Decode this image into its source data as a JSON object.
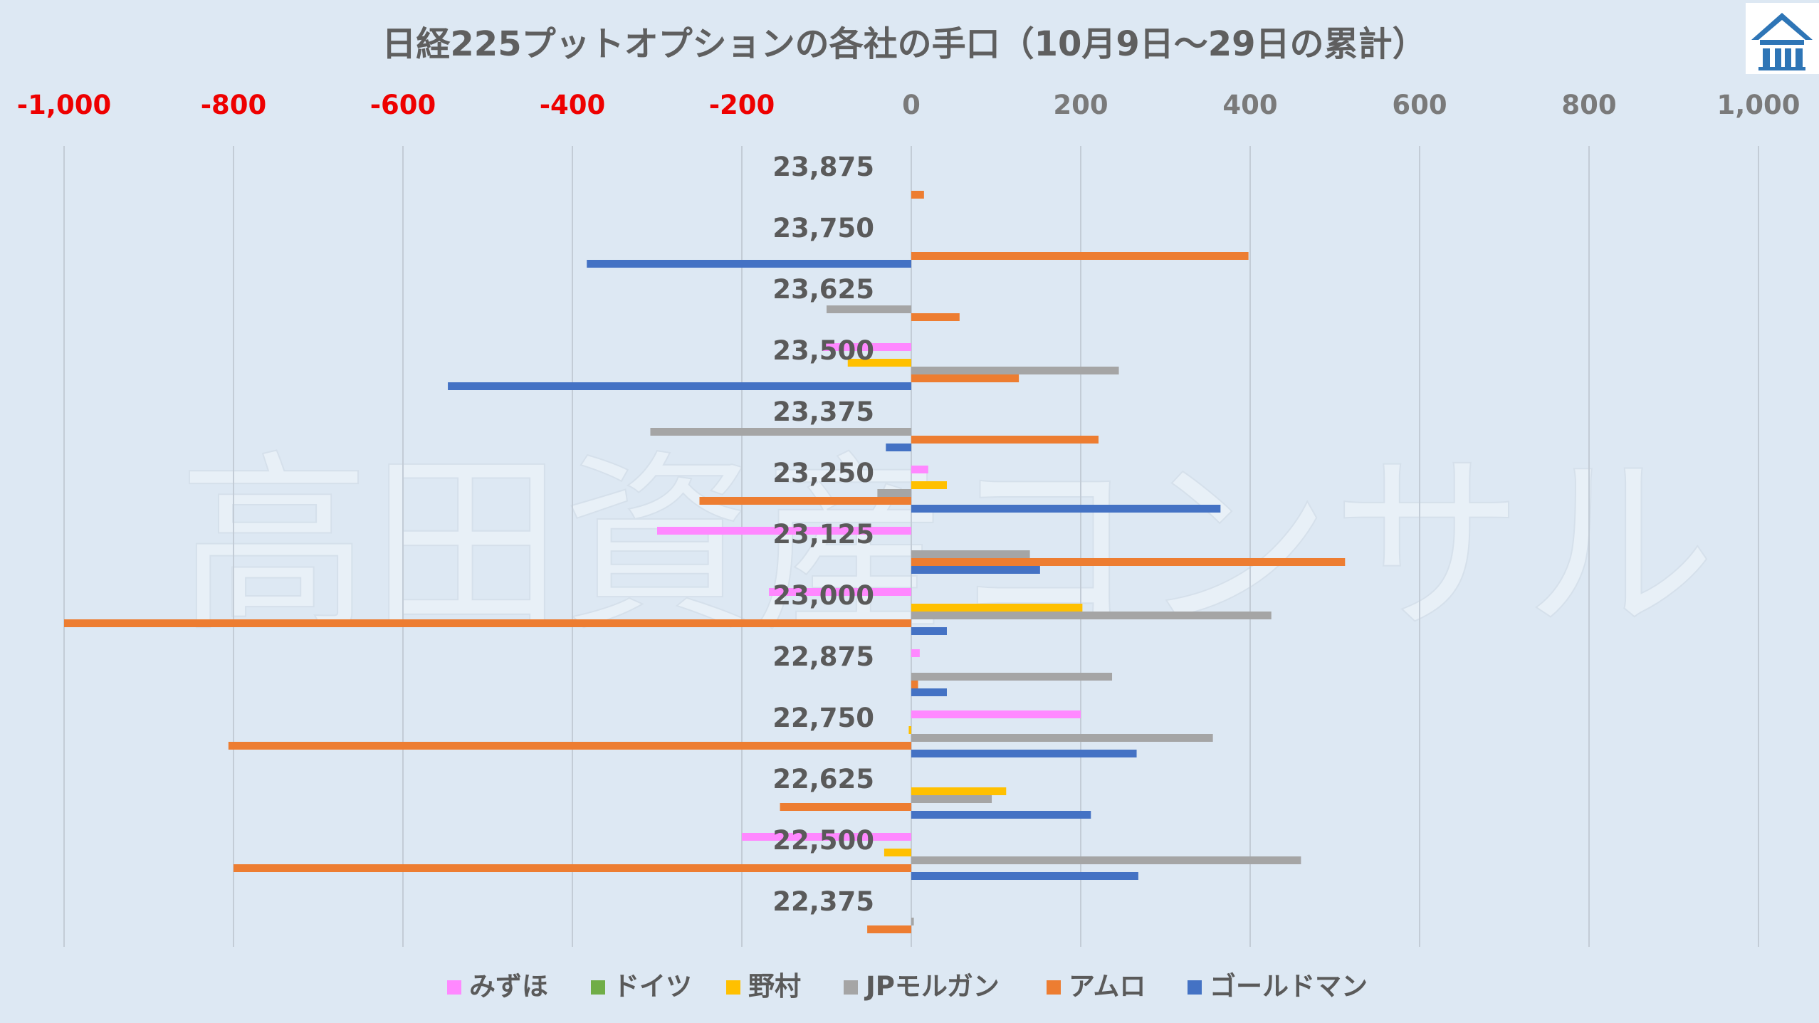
{
  "chart_data": {
    "type": "bar",
    "orientation": "horizontal",
    "title": "日経225プットオプションの各社の手口（10月9日～29日の累計）",
    "watermark": "高田資産コンサル",
    "xlim": [
      -1000,
      1000
    ],
    "xticks": [
      -1000,
      -800,
      -600,
      -400,
      -200,
      0,
      200,
      400,
      600,
      800,
      1000
    ],
    "xtick_labels": [
      "-1,000",
      "-800",
      "-600",
      "-400",
      "-200",
      "0",
      "200",
      "400",
      "600",
      "800",
      "1,000"
    ],
    "axis_position": "top",
    "grid": true,
    "legend_position": "bottom",
    "categories": [
      "23,875",
      "23,750",
      "23,625",
      "23,500",
      "23,375",
      "23,250",
      "23,125",
      "23,000",
      "22,875",
      "22,750",
      "22,625",
      "22,500",
      "22,375"
    ],
    "series": [
      {
        "name": "みずほ",
        "color": "#ff88ff",
        "values": [
          0,
          0,
          0,
          -105,
          0,
          20,
          -300,
          -168,
          10,
          200,
          0,
          -200,
          0
        ]
      },
      {
        "name": "ドイツ",
        "color": "#70ad47",
        "values": [
          0,
          0,
          0,
          0,
          0,
          0,
          0,
          0,
          0,
          0,
          0,
          0,
          0
        ]
      },
      {
        "name": "野村",
        "color": "#ffc000",
        "values": [
          0,
          0,
          0,
          -75,
          0,
          42,
          0,
          202,
          0,
          -3,
          112,
          -32,
          0
        ]
      },
      {
        "name": "JPモルガン",
        "color": "#a5a5a5",
        "values": [
          0,
          0,
          -100,
          245,
          -308,
          -40,
          140,
          425,
          237,
          356,
          95,
          460,
          3
        ]
      },
      {
        "name": "アムロ",
        "color": "#ed7d31",
        "values": [
          15,
          398,
          57,
          127,
          221,
          -250,
          512,
          -1000,
          8,
          -806,
          -155,
          -800,
          -52
        ]
      },
      {
        "name": "ゴールドマン",
        "color": "#4472c4",
        "values": [
          0,
          -383,
          0,
          -547,
          -30,
          365,
          152,
          42,
          42,
          266,
          212,
          268,
          0
        ]
      }
    ]
  }
}
